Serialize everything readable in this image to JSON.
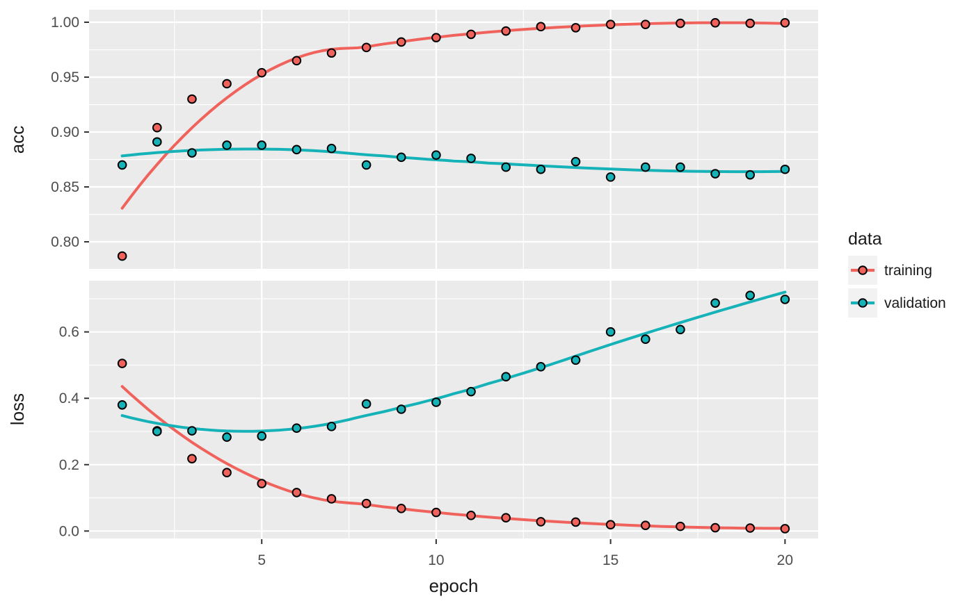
{
  "chart_data": [
    {
      "type": "scatter",
      "facet": "acc",
      "smooth": "loess",
      "ylabel": "acc",
      "x": [
        1,
        2,
        3,
        4,
        5,
        6,
        7,
        8,
        9,
        10,
        11,
        12,
        13,
        14,
        15,
        16,
        17,
        18,
        19,
        20
      ],
      "series": [
        {
          "name": "training",
          "color": "#F0625C",
          "values": [
            0.787,
            0.904,
            0.93,
            0.944,
            0.954,
            0.965,
            0.972,
            0.977,
            0.982,
            0.986,
            0.989,
            0.992,
            0.996,
            0.995,
            0.998,
            0.998,
            0.999,
            0.9995,
            0.999,
            0.9995
          ]
        },
        {
          "name": "validation",
          "color": "#15B2B8",
          "values": [
            0.87,
            0.891,
            0.881,
            0.888,
            0.888,
            0.884,
            0.885,
            0.87,
            0.877,
            0.879,
            0.876,
            0.868,
            0.866,
            0.873,
            0.859,
            0.868,
            0.868,
            0.862,
            0.861,
            0.866
          ]
        }
      ],
      "yticks": [
        1.0,
        0.95,
        0.9,
        0.85,
        0.8
      ],
      "ytick_labels": [
        "1.00",
        "0.95",
        "0.90",
        "0.85",
        "0.80"
      ],
      "ylim": [
        0.7747,
        1.0114
      ],
      "grid": true
    },
    {
      "type": "scatter",
      "facet": "loss",
      "smooth": "loess",
      "ylabel": "loss",
      "x": [
        1,
        2,
        3,
        4,
        5,
        6,
        7,
        8,
        9,
        10,
        11,
        12,
        13,
        14,
        15,
        16,
        17,
        18,
        19,
        20
      ],
      "series": [
        {
          "name": "training",
          "color": "#F0625C",
          "values": [
            0.505,
            0.302,
            0.218,
            0.176,
            0.143,
            0.116,
            0.097,
            0.083,
            0.068,
            0.056,
            0.047,
            0.04,
            0.028,
            0.027,
            0.019,
            0.017,
            0.014,
            0.01,
            0.009,
            0.007
          ]
        },
        {
          "name": "validation",
          "color": "#15B2B8",
          "values": [
            0.38,
            0.3,
            0.302,
            0.283,
            0.286,
            0.31,
            0.315,
            0.383,
            0.367,
            0.388,
            0.42,
            0.465,
            0.495,
            0.515,
            0.6,
            0.578,
            0.607,
            0.687,
            0.71,
            0.698
          ]
        }
      ],
      "yticks": [
        0.6,
        0.4,
        0.2,
        0.0
      ],
      "ytick_labels": [
        "0.6",
        "0.4",
        "0.2",
        "0.0"
      ],
      "ylim": [
        -0.0224,
        0.7543
      ],
      "grid": true
    }
  ],
  "x_axis": {
    "label": "epoch",
    "ticks": [
      5,
      10,
      15,
      20
    ],
    "tick_labels": [
      "5",
      "10",
      "15",
      "20"
    ],
    "minor_ticks": [
      2.5,
      7.5,
      12.5,
      17.5
    ],
    "xlim": [
      0.05,
      20.95
    ]
  },
  "legend": {
    "title": "data",
    "position": "right",
    "items": [
      {
        "label": "training",
        "color": "#F0625C"
      },
      {
        "label": "validation",
        "color": "#15B2B8"
      }
    ]
  },
  "style": {
    "panel_bg": "#EBEBEB",
    "grid_color": "#FFFFFF",
    "tick_text_color": "#4D4D4D",
    "tick_mark_color": "#333333",
    "title_color": "#1A1A1A",
    "legend_key_bg": "#F2F2F2",
    "point_stroke": "#000000"
  }
}
